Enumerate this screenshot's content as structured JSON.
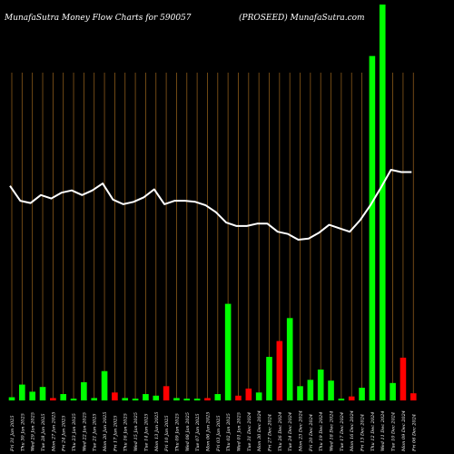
{
  "chart_data": {
    "type": "bar",
    "title_left": "MunafaSutra  Money Flow  Charts for 590057",
    "title_right": "(PROSEED) MunafaSutra.com",
    "categories": [
      "Fri 31 Jan 2025",
      "Thu 30 Jan 2025",
      "Wed 29 Jan 2025",
      "Tue 28 Jan 2025",
      "Mon 27 Jan 2025",
      "Fri 24 Jan 2025",
      "Thu 23 Jan 2025",
      "Wed 22 Jan 2025",
      "Tue 21 Jan 2025",
      "Mon 20 Jan 2025",
      "Fri 17 Jan 2025",
      "Thu 16 Jan 2025",
      "Wed 15 Jan 2025",
      "Tue 14 Jan 2025",
      "Mon 13 Jan 2025",
      "Fri 10 Jan 2025",
      "Thu 09 Jan 2025",
      "Wed 08 Jan 2025",
      "Tue 07 Jan 2025",
      "Mon 06 Jan 2025",
      "Fri 03 Jan 2025",
      "Thu 02 Jan 2025",
      "Wed 01 Jan 2025",
      "Tue 31 Dec 2024",
      "Mon 30 Dec 2024",
      "Fri 27 Dec 2024",
      "Thu 26 Dec 2024",
      "Tue 24 Dec 2024",
      "Mon 23 Dec 2024",
      "Fri 20 Dec 2024",
      "Thu 19 Dec 2024",
      "Wed 18 Dec 2024",
      "Tue 17 Dec 2024",
      "Mon 16 Dec 2024",
      "Fri 13 Dec 2024",
      "Thu 12 Dec 2024",
      "Wed 11 Dec 2024",
      "Tue 10 Dec 2024",
      "Mon 09 Dec 2024",
      "Fri 06 Dec 2024"
    ],
    "bar_volume": [
      4,
      20,
      11,
      17,
      3,
      8,
      2,
      23,
      3,
      37,
      10,
      3,
      2,
      8,
      6,
      18,
      3,
      2,
      2,
      3,
      8,
      122,
      6,
      15,
      10,
      55,
      75,
      104,
      18,
      26,
      39,
      25,
      2,
      5,
      16,
      435,
      500,
      22,
      54,
      9
    ],
    "bar_direction": [
      "up",
      "up",
      "up",
      "up",
      "down",
      "up",
      "up",
      "up",
      "up",
      "up",
      "down",
      "up",
      "up",
      "up",
      "up",
      "down",
      "up",
      "up",
      "up",
      "down",
      "up",
      "up",
      "down",
      "down",
      "up",
      "up",
      "down",
      "up",
      "up",
      "up",
      "up",
      "up",
      "up",
      "down",
      "up",
      "up",
      "up",
      "up",
      "down",
      "down"
    ],
    "price_line": [
      58,
      45,
      43,
      50,
      47,
      52,
      54,
      50,
      54,
      60,
      46,
      42,
      44,
      48,
      55,
      42,
      45,
      45,
      44,
      41,
      35,
      26,
      23,
      23,
      25,
      25,
      18,
      16,
      11,
      12,
      17,
      24,
      21,
      18,
      28,
      41,
      56,
      72,
      70,
      70
    ],
    "colors": {
      "background": "#000000",
      "up_bar": "#00ff00",
      "down_bar": "#ff0000",
      "gridline": "#8b5a1a",
      "price_line": "#ffffff",
      "text": "#ffffff"
    }
  }
}
